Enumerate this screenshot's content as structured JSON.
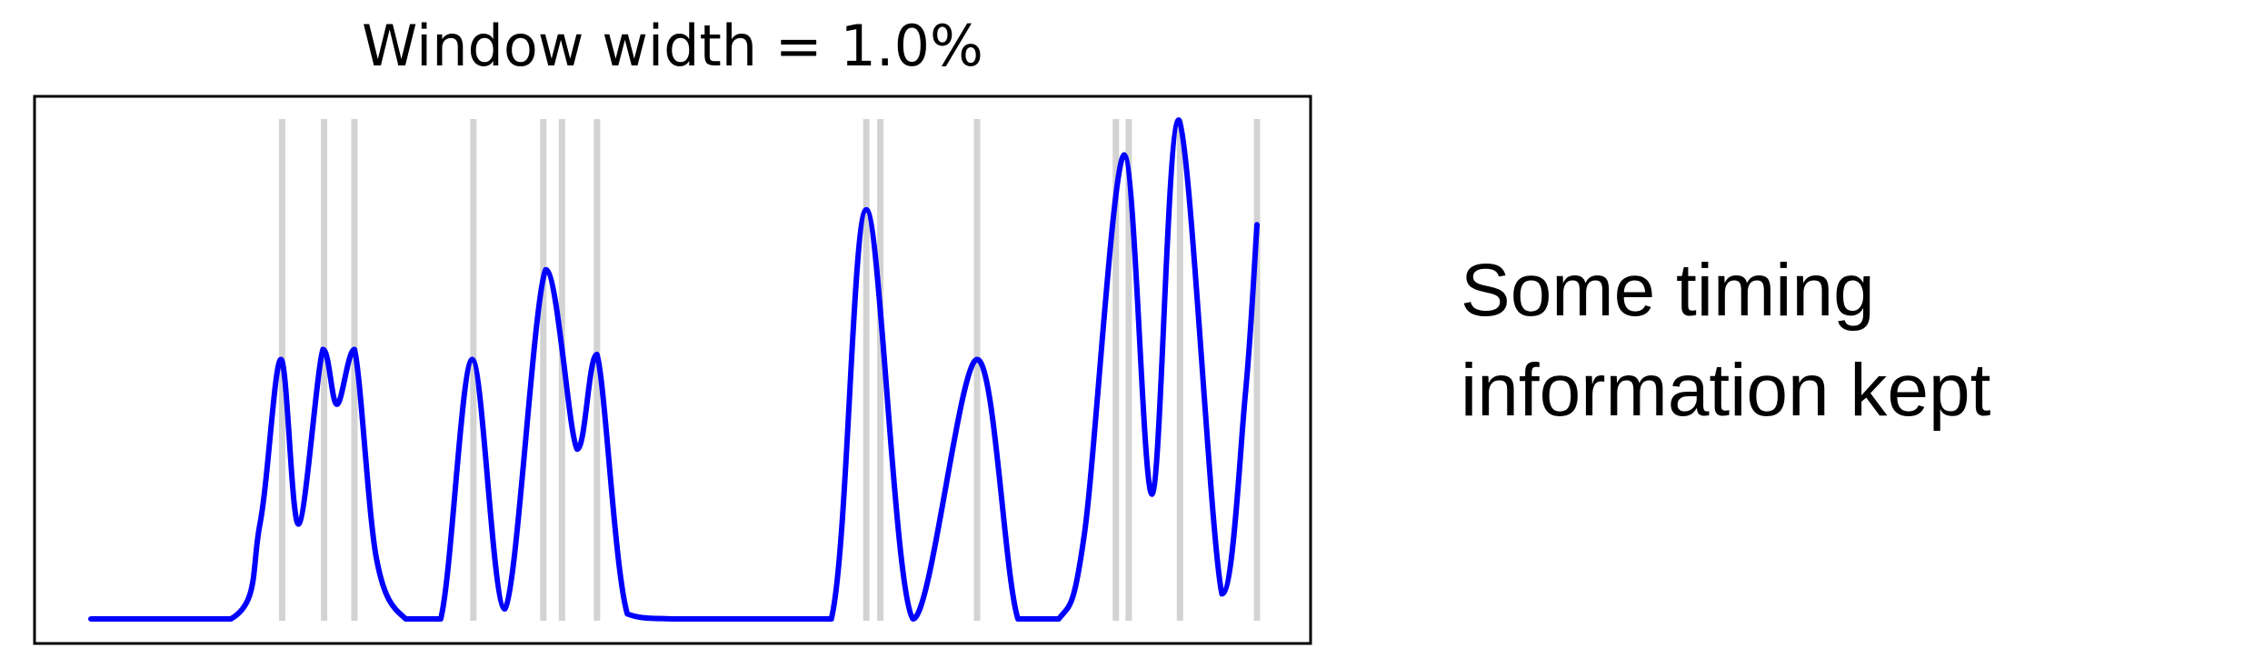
{
  "chart_data": {
    "type": "line",
    "title": "Window width = 1.0%",
    "xlabel": "",
    "ylabel": "",
    "x_ticks": [],
    "y_ticks": [],
    "grid": false,
    "legend": "none",
    "xlim": [
      0,
      100
    ],
    "ylim": [
      0,
      1
    ],
    "spike_times": [
      16.4,
      20.0,
      22.6,
      32.8,
      38.8,
      40.4,
      43.4,
      66.5,
      67.7,
      76.0,
      87.9,
      89.0,
      93.4,
      100
    ],
    "series": [
      {
        "color": "#0000ff",
        "x": [
          0,
          12.0,
          14.5,
          16.3,
          17.8,
          19.9,
          21.1,
          22.6,
          24.5,
          27.0,
          30.0,
          32.7,
          35.5,
          39.0,
          41.7,
          43.4,
          46.0,
          50.0,
          58.0,
          63.5,
          66.5,
          70.5,
          76.0,
          79.5,
          83.0,
          85.2,
          88.6,
          91.0,
          93.3,
          97.0,
          99.0,
          100
        ],
        "y": [
          0.0,
          0.0,
          0.19,
          0.52,
          0.19,
          0.54,
          0.43,
          0.54,
          0.12,
          0.0,
          0.0,
          0.52,
          0.02,
          0.7,
          0.34,
          0.53,
          0.01,
          0.0,
          0.0,
          0.0,
          0.82,
          0.0,
          0.52,
          0.0,
          0.0,
          0.17,
          0.93,
          0.25,
          1.0,
          0.05,
          0.45,
          0.79
        ]
      }
    ]
  },
  "caption": {
    "line1": "Some timing",
    "line2": "information kept"
  },
  "colors": {
    "curve": "#0000ff",
    "spike": "#d3d3d3",
    "frame": "#000000"
  }
}
